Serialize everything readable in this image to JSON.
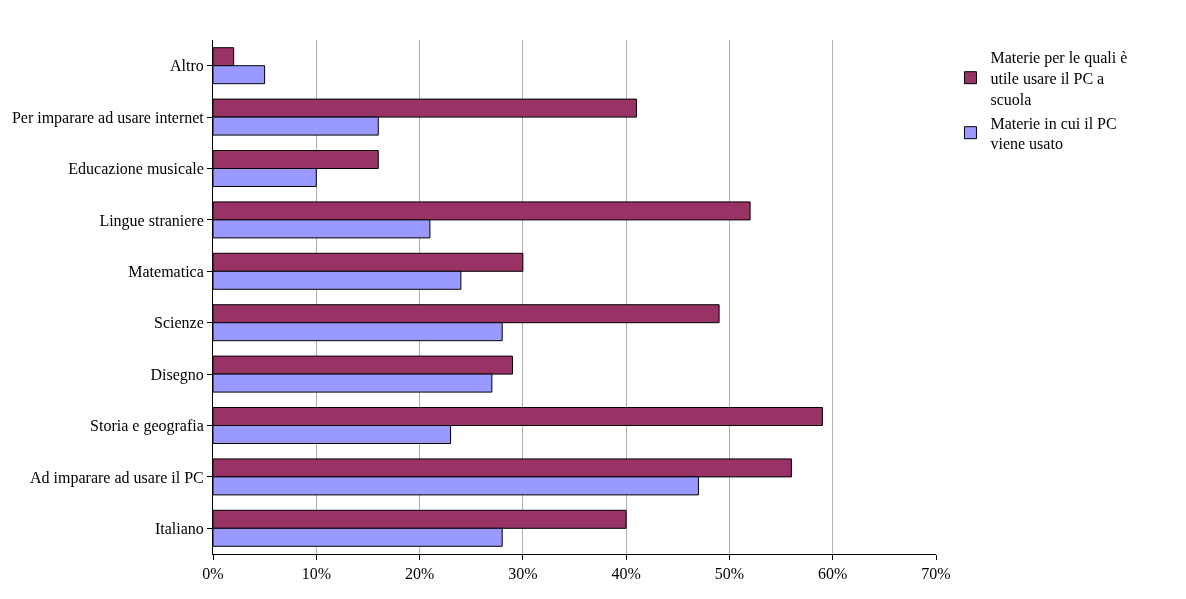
{
  "chart_data": {
    "type": "bar",
    "orientation": "horizontal",
    "categories": [
      "Altro",
      "Per imparare ad usare internet",
      "Educazione musicale",
      "Lingue straniere",
      "Matematica",
      "Scienze",
      "Disegno",
      "Storia e geografia",
      "Ad imparare ad usare il PC",
      "Italiano"
    ],
    "series": [
      {
        "name": "Materie per le quali è utile usare il PC a scuola",
        "color": "#993366",
        "values": [
          2,
          41,
          16,
          52,
          30,
          49,
          29,
          59,
          56,
          40
        ]
      },
      {
        "name": "Materie in cui il PC viene usato",
        "color": "#9999ff",
        "values": [
          5,
          16,
          10,
          21,
          24,
          28,
          27,
          23,
          47,
          28
        ]
      }
    ],
    "xlim": [
      0,
      70
    ],
    "xticks": [
      {
        "value": 0,
        "label": "0%"
      },
      {
        "value": 10,
        "label": "10%"
      },
      {
        "value": 20,
        "label": "20%"
      },
      {
        "value": 30,
        "label": "30%"
      },
      {
        "value": 40,
        "label": "40%"
      },
      {
        "value": 50,
        "label": "50%"
      },
      {
        "value": 60,
        "label": "60%"
      },
      {
        "value": 70,
        "label": "70%"
      }
    ],
    "grid": "x",
    "legend": "top right"
  }
}
